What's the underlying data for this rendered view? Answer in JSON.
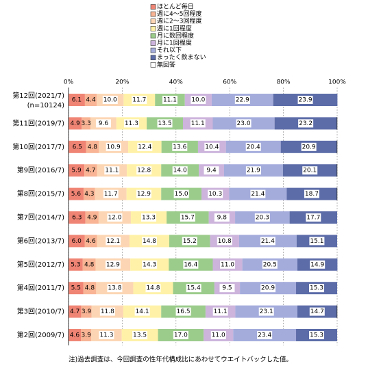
{
  "chart_data": {
    "type": "bar",
    "orientation": "horizontal",
    "stacked": true,
    "categories": [
      "第12回(2021/7)",
      "第11回(2019/7)",
      "第10回(2017/7)",
      "第9回(2016/7)",
      "第8回(2015/7)",
      "第7回(2014/7)",
      "第6回(2013/7)",
      "第5回(2012/7)",
      "第4回(2011/7)",
      "第3回(2010/7)",
      "第2回(2009/7)"
    ],
    "sample_note": "(n=10124)",
    "xlim": [
      0,
      100
    ],
    "xticks": [
      {
        "value": 0,
        "label": "0%"
      },
      {
        "value": 20,
        "label": "20%"
      },
      {
        "value": 40,
        "label": "40%"
      },
      {
        "value": 60,
        "label": "60%"
      },
      {
        "value": 80,
        "label": "80%"
      },
      {
        "value": 100,
        "label": "100%"
      }
    ],
    "grid": true,
    "series": [
      {
        "name": "ほとんど毎日",
        "color": "#f08474",
        "values": [
          6.1,
          4.9,
          6.5,
          5.9,
          5.6,
          6.3,
          6.0,
          5.3,
          5.5,
          4.7,
          4.6
        ],
        "value_labels": [
          "6.1",
          "4.9",
          "6.5",
          "5.9",
          "5.6",
          "6.3",
          "6.0",
          "5.3",
          "5.5",
          "4.7",
          "4.6"
        ]
      },
      {
        "name": "週に4～5回程度",
        "color": "#f8b494",
        "values": [
          4.4,
          3.3,
          4.8,
          4.7,
          4.3,
          4.9,
          4.6,
          4.8,
          4.8,
          3.9,
          3.9
        ],
        "value_labels": [
          "4.4",
          "3.3",
          "4.8",
          "4.7",
          "4.3",
          "4.9",
          "4.6",
          "4.8",
          "4.8",
          "3.9",
          "3.9"
        ]
      },
      {
        "name": "週に2～3回程度",
        "color": "#fcd6b4",
        "values": [
          10.0,
          9.6,
          10.9,
          11.1,
          11.7,
          12.0,
          12.1,
          12.9,
          13.8,
          11.8,
          11.3
        ],
        "value_labels": [
          "10.0",
          "9.6",
          "10.9",
          "11.1",
          "11.7",
          "12.0",
          "12.1",
          "12.9",
          "13.8",
          "11.8",
          "11.3"
        ]
      },
      {
        "name": "週に1回程度",
        "color": "#fff2a8",
        "values": [
          11.7,
          11.3,
          12.4,
          12.8,
          12.9,
          13.3,
          14.8,
          14.3,
          14.8,
          14.1,
          13.5
        ],
        "value_labels": [
          "11.7",
          "11.3",
          "12.4",
          "12.8",
          "12.9",
          "13.3",
          "14.8",
          "14.3",
          "14.8",
          "14.1",
          "13.5"
        ]
      },
      {
        "name": "月に数回程度",
        "color": "#9ccc8c",
        "values": [
          11.1,
          13.5,
          13.6,
          14.0,
          15.0,
          15.7,
          15.2,
          16.4,
          15.4,
          16.5,
          17.0
        ],
        "value_labels": [
          "11.1",
          "13.5",
          "13.6",
          "14.0",
          "15.0",
          "15.7",
          "15.2",
          "16.4",
          "15.4",
          "16.5",
          "17.0"
        ]
      },
      {
        "name": "月に1回程度",
        "color": "#ccb4dc",
        "values": [
          10.0,
          11.1,
          10.4,
          9.4,
          10.3,
          9.8,
          10.8,
          11.0,
          9.5,
          11.1,
          11.0
        ],
        "value_labels": [
          "10.0",
          "11.1",
          "10.4",
          "9.4",
          "10.3",
          "9.8",
          "10.8",
          "11.0",
          "9.5",
          "11.1",
          "11.0"
        ]
      },
      {
        "name": "それ以下",
        "color": "#a4acdc",
        "values": [
          22.9,
          23.0,
          20.4,
          21.9,
          21.4,
          20.3,
          21.4,
          20.5,
          20.9,
          23.1,
          23.4
        ],
        "value_labels": [
          "22.9",
          "23.0",
          "20.4",
          "21.9",
          "21.4",
          "20.3",
          "21.4",
          "20.5",
          "20.9",
          "23.1",
          "23.4"
        ]
      },
      {
        "name": "まったく飲まない",
        "color": "#5c6ca8",
        "values": [
          23.9,
          23.2,
          20.9,
          20.1,
          18.7,
          17.7,
          15.1,
          14.9,
          15.3,
          14.7,
          15.3
        ],
        "value_labels": [
          "23.9",
          "23.2",
          "20.9",
          "20.1",
          "18.7",
          "17.7",
          "15.1",
          "14.9",
          "15.3",
          "14.7",
          "15.3"
        ]
      },
      {
        "name": "無回答",
        "color": "#ffffff",
        "values": [
          0,
          0.1,
          0.1,
          0.1,
          0.1,
          0,
          0,
          0,
          0,
          0.1,
          0
        ]
      }
    ],
    "footnote": "注)過去調査は、今回調査の性年代構成比にあわせてウエイトバックした値。"
  }
}
